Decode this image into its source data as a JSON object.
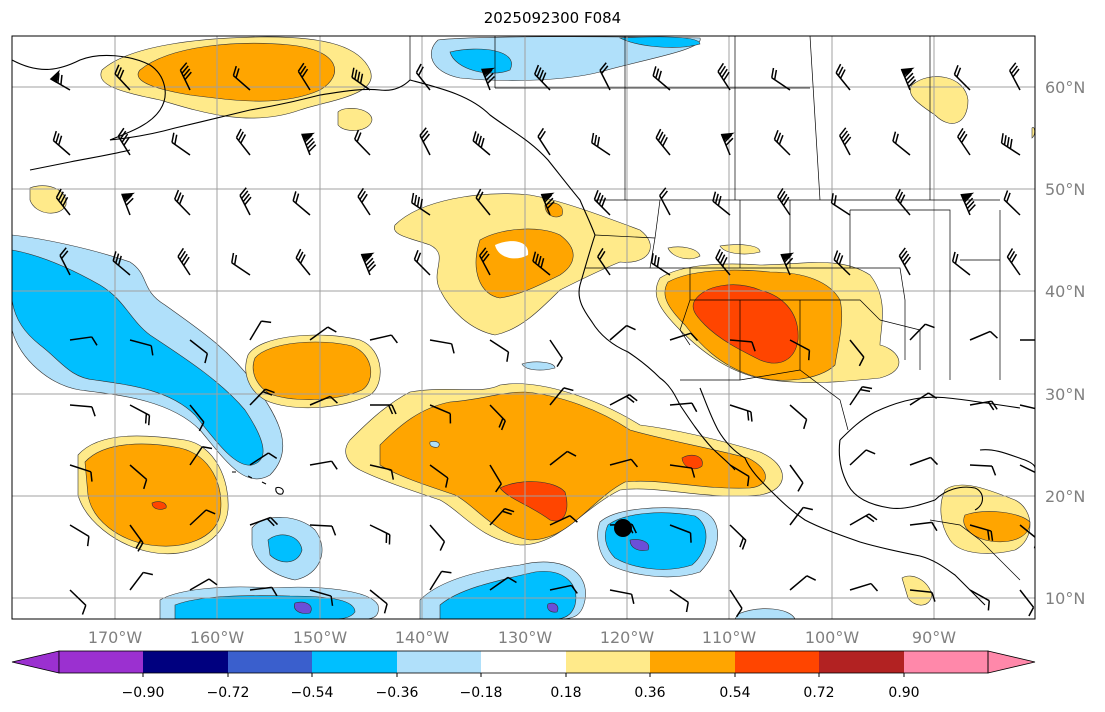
{
  "title": "2025092300 F084",
  "lat_labels": [
    "60°N",
    "50°N",
    "40°N",
    "30°N",
    "20°N",
    "10°N"
  ],
  "lon_labels": [
    "170°W",
    "160°W",
    "150°W",
    "140°W",
    "130°W",
    "120°W",
    "110°W",
    "100°W",
    "90°W"
  ],
  "colorbar": {
    "colors": [
      "#9b30d0",
      "#00007f",
      "#3a5fcd",
      "#00bfff",
      "#b0e0fa",
      "#ffffff",
      "#ffea8a",
      "#ffa500",
      "#ff4500",
      "#b22222",
      "#ff88aa"
    ],
    "labels": [
      "−0.90",
      "−0.72",
      "−0.54",
      "−0.36",
      "−0.18",
      "0.18",
      "0.36",
      "0.54",
      "0.72",
      "0.90"
    ]
  },
  "colors": {
    "pos_light": "#ffea8a",
    "pos_mid": "#ffa500",
    "pos_strong": "#ff4500",
    "neg_light": "#b0e0fa",
    "neg_mid": "#00bfff",
    "neg_strong": "#3a5fcd",
    "neg_stronger": "#6b4fd8",
    "grid": "#a0a0a0",
    "coast": "#000000"
  },
  "marker": {
    "name": "black-dot"
  }
}
